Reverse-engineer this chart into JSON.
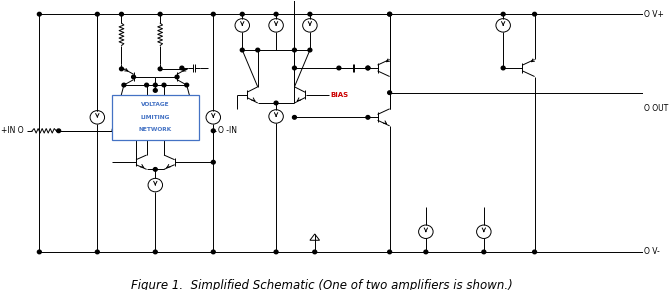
{
  "title": "Figure 1.  Simplified Schematic (One of two amplifiers is shown.)",
  "title_fontsize": 8.5,
  "title_style": "italic",
  "bg_color": "#ffffff",
  "line_color": "#000000",
  "box_edge_color": "#4472c4",
  "box_text": [
    "VOLTAGE",
    "LIMITING",
    "NETWORK"
  ],
  "box_text_color": "#4472c4",
  "bias_color": "#cc0000",
  "label_vplus": "O V+",
  "label_vminus": "O V-",
  "label_out": "O OUT",
  "label_bias": "BIAS",
  "label_pin": "+IN O",
  "label_nin": "O -IN",
  "fig_width": 6.69,
  "fig_height": 2.9,
  "dpi": 100
}
